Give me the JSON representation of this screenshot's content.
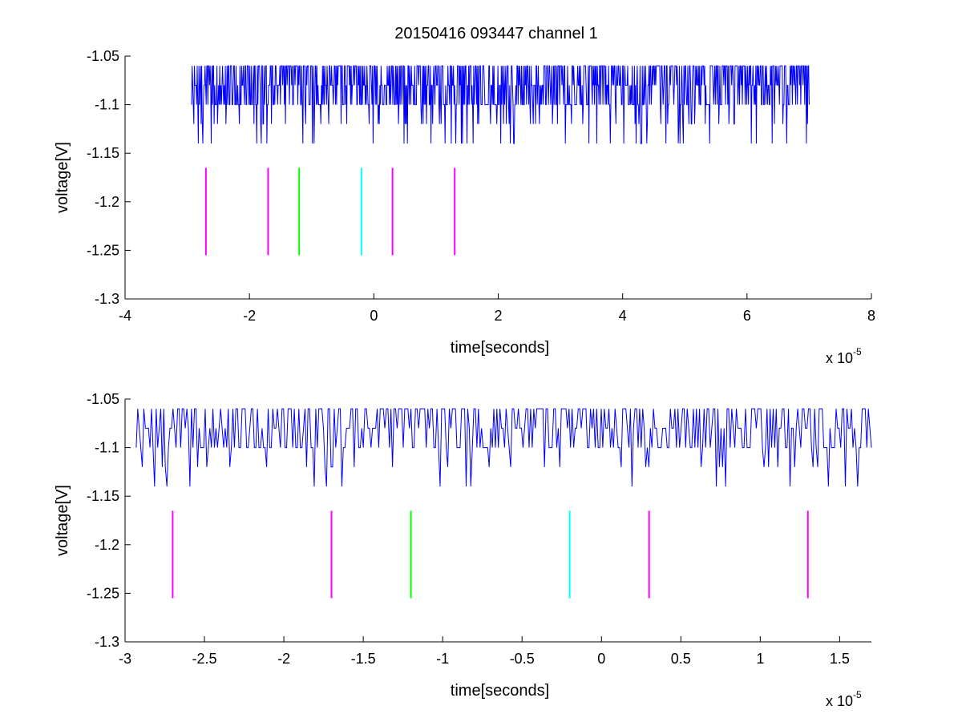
{
  "figure": {
    "title": "20150416 093447 channel 1"
  },
  "chart_data": [
    {
      "type": "line",
      "title": "20150416 093447 channel 1",
      "xlabel": "time[seconds]",
      "ylabel": "voltage[V]",
      "x_exponent_label": "x 10",
      "x_exponent_power": "-5",
      "xlim": [
        -4,
        8
      ],
      "ylim": [
        -1.3,
        -1.05
      ],
      "xticks": [
        "-4",
        "-2",
        "0",
        "2",
        "4",
        "6",
        "8"
      ],
      "yticks": [
        "-1.05",
        "-1.1",
        "-1.15",
        "-1.2",
        "-1.25",
        "-1.3"
      ],
      "grid": false,
      "trace": {
        "color": "#0000ff",
        "x_range": [
          -2.93,
          7.0
        ],
        "levels": [
          -1.06,
          -1.08,
          -1.1,
          -1.12,
          -1.14
        ],
        "baseline": -1.1
      },
      "markers": [
        {
          "x": -2.7,
          "color": "#ff00ff"
        },
        {
          "x": -1.7,
          "color": "#ff00ff"
        },
        {
          "x": -1.2,
          "color": "#00ff00"
        },
        {
          "x": -0.2,
          "color": "#00ffff"
        },
        {
          "x": 0.3,
          "color": "#ff00ff"
        },
        {
          "x": 1.3,
          "color": "#ff00ff"
        }
      ],
      "marker_y_range": [
        -1.255,
        -1.165
      ]
    },
    {
      "type": "line",
      "title": "",
      "xlabel": "time[seconds]",
      "ylabel": "voltage[V]",
      "x_exponent_label": "x 10",
      "x_exponent_power": "-5",
      "xlim": [
        -3.0,
        1.7
      ],
      "ylim": [
        -1.3,
        -1.05
      ],
      "xticks": [
        "-3",
        "-2.5",
        "-2",
        "-1.5",
        "-1",
        "-0.5",
        "0",
        "0.5",
        "1",
        "1.5"
      ],
      "yticks": [
        "-1.05",
        "-1.1",
        "-1.15",
        "-1.2",
        "-1.25",
        "-1.3"
      ],
      "grid": false,
      "trace": {
        "color": "#0000ff",
        "x_range": [
          -2.93,
          1.7
        ],
        "levels": [
          -1.06,
          -1.08,
          -1.1,
          -1.12,
          -1.14
        ],
        "baseline": -1.1
      },
      "markers": [
        {
          "x": -2.7,
          "color": "#ff00ff"
        },
        {
          "x": -1.7,
          "color": "#ff00ff"
        },
        {
          "x": -1.2,
          "color": "#00ff00"
        },
        {
          "x": -0.2,
          "color": "#00ffff"
        },
        {
          "x": 0.3,
          "color": "#ff00ff"
        },
        {
          "x": 1.3,
          "color": "#ff00ff"
        }
      ],
      "marker_y_range": [
        -1.255,
        -1.165
      ]
    }
  ]
}
